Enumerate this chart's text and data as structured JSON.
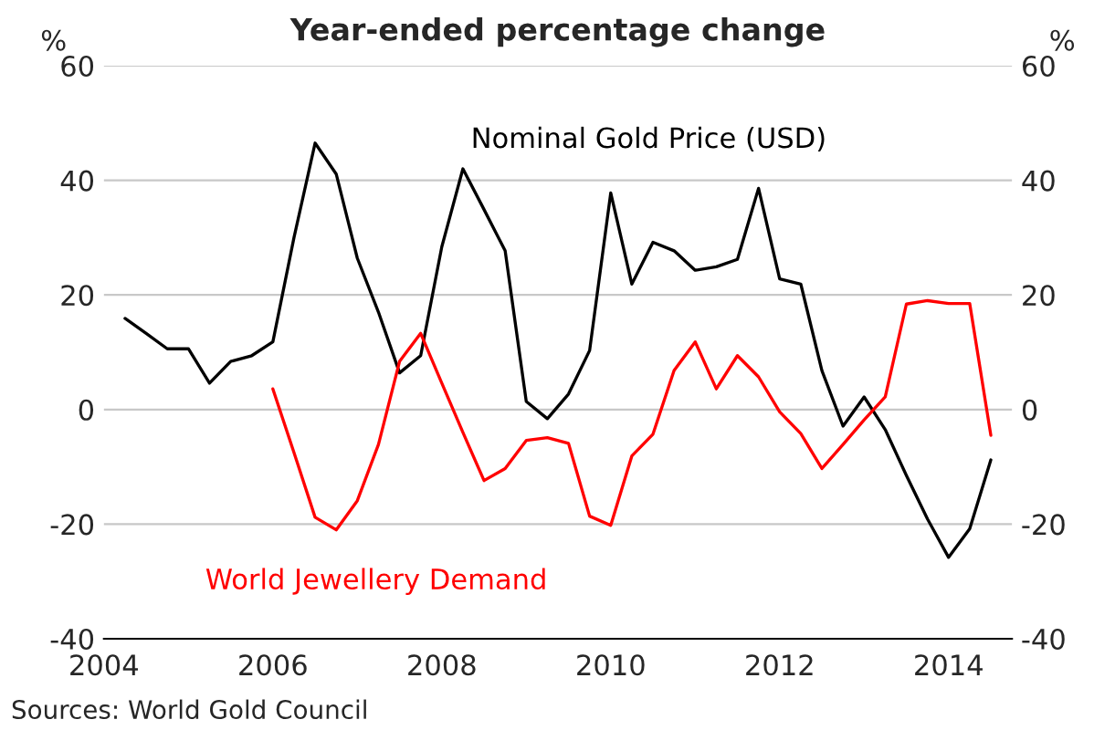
{
  "chart_data": {
    "type": "line",
    "title": "Year-ended percentage change",
    "ylabel": "%",
    "y2label": "%",
    "x": [
      2004.25,
      2004.5,
      2004.75,
      2005.0,
      2005.25,
      2005.5,
      2005.75,
      2006.0,
      2006.25,
      2006.5,
      2006.75,
      2007.0,
      2007.25,
      2007.5,
      2007.75,
      2008.0,
      2008.25,
      2008.5,
      2008.75,
      2009.0,
      2009.25,
      2009.5,
      2009.75,
      2010.0,
      2010.25,
      2010.5,
      2010.75,
      2011.0,
      2011.25,
      2011.5,
      2011.75,
      2012.0,
      2012.25,
      2012.5,
      2012.75,
      2013.0,
      2013.25,
      2013.5,
      2013.75,
      2014.0,
      2014.25,
      2014.5
    ],
    "series": [
      {
        "name": "Nominal Gold Price (USD)",
        "color": "#000000",
        "values": [
          15.9,
          13.3,
          10.6,
          10.6,
          4.6,
          8.4,
          9.4,
          11.8,
          30,
          46.5,
          41.1,
          26.4,
          17,
          6.4,
          9.4,
          28.4,
          42,
          34.9,
          27.7,
          1.4,
          -1.6,
          2.7,
          10.3,
          37.8,
          21.9,
          29.2,
          27.7,
          24.3,
          24.9,
          26.2,
          38.6,
          22.8,
          21.9,
          6.8,
          -2.9,
          2.2,
          -3.5,
          -11.5,
          -19.1,
          -25.8,
          -20.8,
          -8.8
        ]
      },
      {
        "name": "World Jewellery Demand",
        "color": "#ff0000",
        "values": [
          null,
          null,
          null,
          null,
          null,
          null,
          null,
          3.6,
          -7.5,
          -18.8,
          -21,
          -15.9,
          -6.1,
          8.4,
          13.3,
          4.6,
          -4,
          -12.4,
          -10.3,
          -5.4,
          -4.9,
          -5.9,
          -18.6,
          -20.2,
          -8.1,
          -4.3,
          6.8,
          11.8,
          3.6,
          9.4,
          5.7,
          -0.4,
          -4.2,
          -10.3,
          -6.1,
          -1.8,
          2.2,
          18.4,
          19,
          18.5,
          18.5,
          -4.5
        ]
      }
    ],
    "xlim": [
      2004,
      2014.75
    ],
    "xticks": [
      2004,
      2006,
      2008,
      2010,
      2012,
      2014
    ],
    "ylim": [
      -40,
      60
    ],
    "yticks": [
      -40,
      -20,
      0,
      20,
      40,
      60
    ],
    "y2lim": [
      -40,
      60
    ],
    "y2ticks": [
      -40,
      -20,
      0,
      20,
      40,
      60
    ],
    "grid": "y",
    "legend": false,
    "marker": "none",
    "line_style": "solid",
    "annotations": [
      "Sources: World Gold Council"
    ]
  }
}
